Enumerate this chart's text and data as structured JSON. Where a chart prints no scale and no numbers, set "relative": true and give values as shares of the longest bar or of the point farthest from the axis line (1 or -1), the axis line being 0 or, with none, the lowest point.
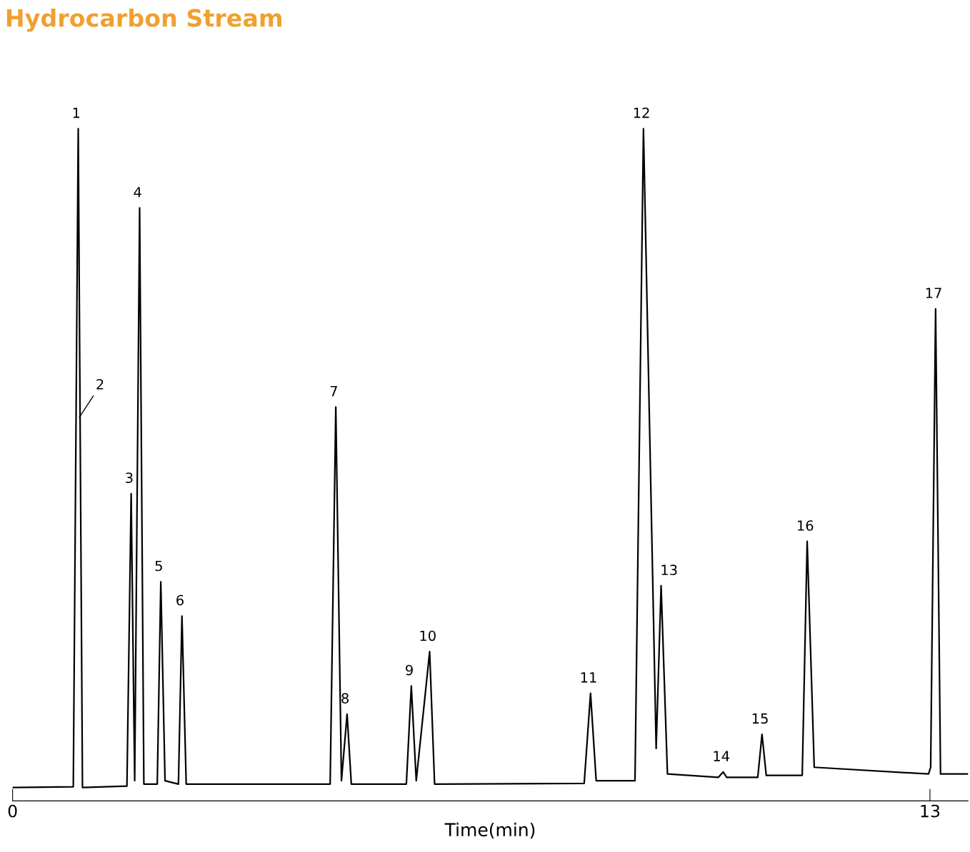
{
  "chart_data": {
    "type": "line",
    "title": "Hydrocarbon Stream",
    "xlabel": "Time(min)",
    "relative": true,
    "color": "#000000",
    "xlim": [
      0,
      13.54
    ],
    "xticks": [
      0,
      13
    ],
    "marker": "none",
    "line_style": "solid",
    "x": [
      0,
      0.86,
      0.93,
      0.99,
      1.62,
      1.68,
      1.73,
      1.8,
      1.86,
      2.05,
      2.1,
      2.16,
      2.35,
      2.4,
      2.46,
      4.5,
      4.58,
      4.66,
      4.74,
      4.8,
      5.58,
      5.65,
      5.72,
      5.91,
      5.98,
      8.1,
      8.19,
      8.27,
      8.82,
      8.94,
      9.12,
      9.19,
      9.28,
      10.0,
      10.07,
      10.12,
      10.56,
      10.62,
      10.68,
      11.19,
      11.26,
      11.36,
      12.98,
      13.01,
      13.08,
      13.15,
      13.54
    ],
    "values": [
      0.02,
      0.021,
      1.0,
      0.02,
      0.022,
      0.457,
      0.03,
      0.882,
      0.025,
      0.025,
      0.326,
      0.03,
      0.025,
      0.275,
      0.025,
      0.025,
      0.586,
      0.03,
      0.129,
      0.025,
      0.025,
      0.171,
      0.03,
      0.222,
      0.025,
      0.026,
      0.16,
      0.03,
      0.03,
      1.0,
      0.078,
      0.32,
      0.04,
      0.035,
      0.043,
      0.035,
      0.035,
      0.099,
      0.038,
      0.038,
      0.386,
      0.05,
      0.04,
      0.05,
      0.732,
      0.04,
      0.04
    ],
    "annotations": [
      {
        "text": "1",
        "x": 0.93,
        "y": 1.0
      },
      {
        "text": "2",
        "x": 0.93,
        "y": 0.568
      },
      {
        "text": "3",
        "x": 1.68,
        "y": 0.457
      },
      {
        "text": "4",
        "x": 1.8,
        "y": 0.882
      },
      {
        "text": "5",
        "x": 2.1,
        "y": 0.326
      },
      {
        "text": "6",
        "x": 2.4,
        "y": 0.275
      },
      {
        "text": "7",
        "x": 4.58,
        "y": 0.586
      },
      {
        "text": "8",
        "x": 4.74,
        "y": 0.129
      },
      {
        "text": "9",
        "x": 5.65,
        "y": 0.171
      },
      {
        "text": "10",
        "x": 5.91,
        "y": 0.222
      },
      {
        "text": "11",
        "x": 8.19,
        "y": 0.16
      },
      {
        "text": "12",
        "x": 8.94,
        "y": 1.0
      },
      {
        "text": "13",
        "x": 9.19,
        "y": 0.32
      },
      {
        "text": "14",
        "x": 10.07,
        "y": 0.043
      },
      {
        "text": "15",
        "x": 10.62,
        "y": 0.099
      },
      {
        "text": "16",
        "x": 11.26,
        "y": 0.386
      },
      {
        "text": "17",
        "x": 13.08,
        "y": 0.732
      }
    ]
  }
}
